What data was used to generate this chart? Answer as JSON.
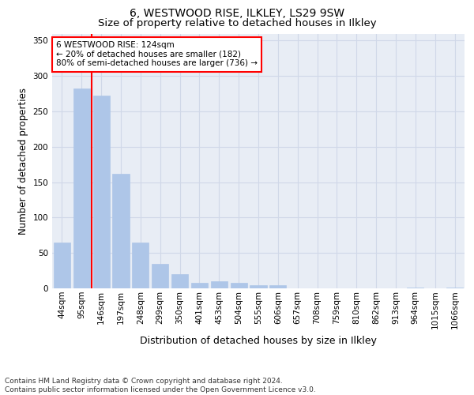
{
  "title1": "6, WESTWOOD RISE, ILKLEY, LS29 9SW",
  "title2": "Size of property relative to detached houses in Ilkley",
  "xlabel": "Distribution of detached houses by size in Ilkley",
  "ylabel": "Number of detached properties",
  "categories": [
    "44sqm",
    "95sqm",
    "146sqm",
    "197sqm",
    "248sqm",
    "299sqm",
    "350sqm",
    "401sqm",
    "453sqm",
    "504sqm",
    "555sqm",
    "606sqm",
    "657sqm",
    "708sqm",
    "759sqm",
    "810sqm",
    "862sqm",
    "913sqm",
    "964sqm",
    "1015sqm",
    "1066sqm"
  ],
  "values": [
    65,
    282,
    272,
    162,
    65,
    35,
    20,
    8,
    10,
    8,
    5,
    4,
    0,
    0,
    0,
    0,
    0,
    0,
    1,
    0,
    1
  ],
  "bar_color": "#aec6e8",
  "bar_edge_color": "#aec6e8",
  "vline_x": 1.5,
  "vline_color": "red",
  "annotation_text": "6 WESTWOOD RISE: 124sqm\n← 20% of detached houses are smaller (182)\n80% of semi-detached houses are larger (736) →",
  "annotation_box_facecolor": "white",
  "annotation_box_edgecolor": "red",
  "ylim": [
    0,
    360
  ],
  "yticks": [
    0,
    50,
    100,
    150,
    200,
    250,
    300,
    350
  ],
  "grid_color": "#d0d8e8",
  "bg_color": "#e8edf5",
  "footnote": "Contains HM Land Registry data © Crown copyright and database right 2024.\nContains public sector information licensed under the Open Government Licence v3.0.",
  "title1_fontsize": 10,
  "title2_fontsize": 9.5,
  "xlabel_fontsize": 9,
  "ylabel_fontsize": 8.5,
  "tick_fontsize": 7.5,
  "annot_fontsize": 7.5,
  "footnote_fontsize": 6.5
}
